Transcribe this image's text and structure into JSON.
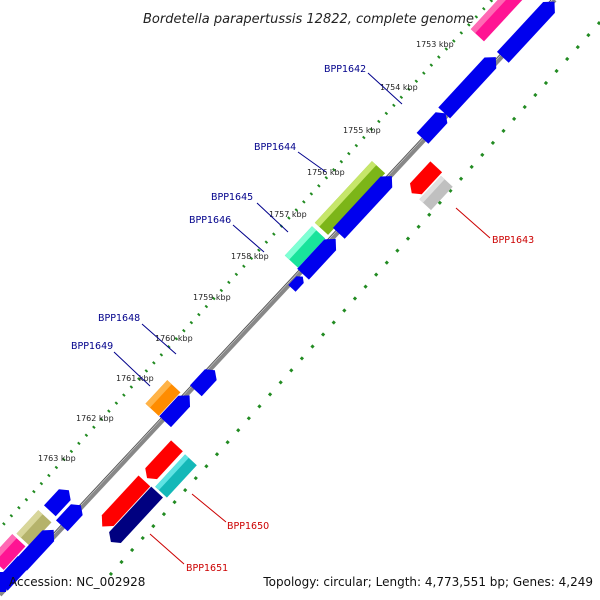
{
  "title": "Bordetella parapertussis 12822, complete genome",
  "footer": {
    "accession": "Accession: NC_002928",
    "summary": "Topology: circular; Length: 4,773,551 bp; Genes: 4,249"
  },
  "colors": {
    "backbone": "#888888",
    "tick": "#228b22",
    "label_blue": "#00008b",
    "label_red": "#cc0000"
  },
  "ticks": [
    {
      "label": "1753 kbp"
    },
    {
      "label": "1754 kbp"
    },
    {
      "label": "1755 kbp"
    },
    {
      "label": "1756 kbp"
    },
    {
      "label": "1757 kbp"
    },
    {
      "label": "1758 kbp"
    },
    {
      "label": "1759 kbp"
    },
    {
      "label": "1760 kbp"
    },
    {
      "label": "1761 kbp"
    },
    {
      "label": "1762 kbp"
    },
    {
      "label": "1763 kbp"
    }
  ],
  "gene_labels": [
    {
      "name": "BPP1642",
      "color": "#00008b"
    },
    {
      "name": "BPP1643",
      "color": "#cc0000"
    },
    {
      "name": "BPP1644",
      "color": "#00008b"
    },
    {
      "name": "BPP1645",
      "color": "#00008b"
    },
    {
      "name": "BPP1646",
      "color": "#00008b"
    },
    {
      "name": "BPP1648",
      "color": "#00008b"
    },
    {
      "name": "BPP1649",
      "color": "#00008b"
    },
    {
      "name": "BPP1650",
      "color": "#cc0000"
    },
    {
      "name": "BPP1651",
      "color": "#cc0000"
    }
  ]
}
